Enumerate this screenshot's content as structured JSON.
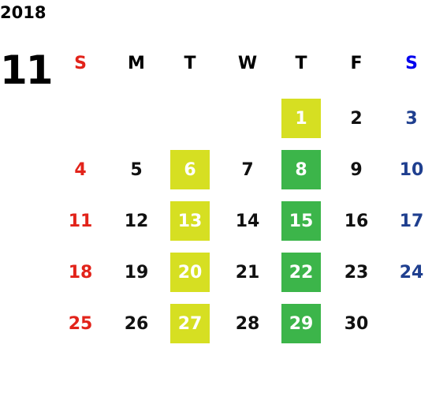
{
  "year": "2018",
  "month": "11",
  "weekdays": [
    "S",
    "M",
    "T",
    "W",
    "T",
    "F",
    "S"
  ],
  "header_colors": [
    "#e2231a",
    "#000000",
    "#000000",
    "#000000",
    "#000000",
    "#000000",
    "#0000ee"
  ],
  "day_colors": [
    "#e2231a",
    "#111111",
    "#111111",
    "#111111",
    "#111111",
    "#111111",
    "#1f3f8f"
  ],
  "weeks": [
    [
      null,
      null,
      null,
      null,
      1,
      2,
      3
    ],
    [
      4,
      5,
      6,
      7,
      8,
      9,
      10
    ],
    [
      11,
      12,
      13,
      14,
      15,
      16,
      17
    ],
    [
      18,
      19,
      20,
      21,
      22,
      23,
      24
    ],
    [
      25,
      26,
      27,
      28,
      29,
      30,
      null
    ]
  ],
  "highlights": [
    {
      "color": "#d6df22",
      "days": [
        1,
        6,
        13,
        20,
        27
      ]
    },
    {
      "color": "#3cb54a",
      "days": [
        8,
        15,
        22,
        29
      ]
    }
  ]
}
